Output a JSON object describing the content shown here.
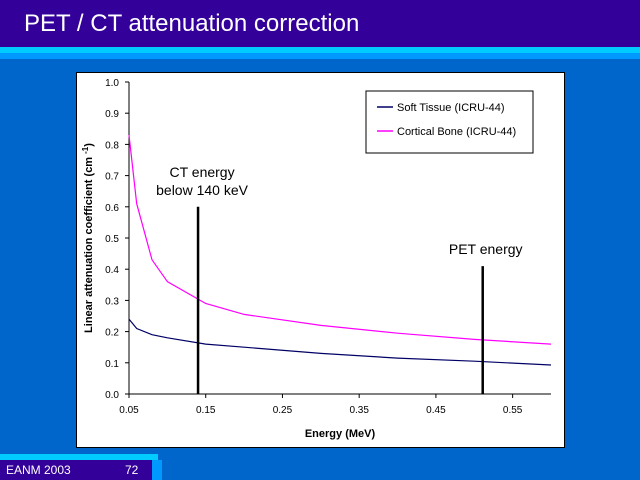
{
  "slide": {
    "title": "PET / CT attenuation correction",
    "footer_conference": "EANM 2003",
    "footer_page": "72"
  },
  "chart_data": {
    "type": "line",
    "title": "",
    "xlabel": "Energy (MeV)",
    "ylabel": "Linear attenuation coefficient (cm -1)",
    "ylabel_main": "Linear attenuation coefficient (cm",
    "ylabel_sup": "-1",
    "ylabel_close": ")",
    "xlim": [
      0.05,
      0.6
    ],
    "ylim": [
      0.0,
      1.0
    ],
    "xticks": [
      "0.05",
      "0.15",
      "0.25",
      "0.35",
      "0.45",
      "0.55"
    ],
    "xtick_values": [
      0.05,
      0.15,
      0.25,
      0.35,
      0.45,
      0.55
    ],
    "yticks": [
      "0.0",
      "0.1",
      "0.2",
      "0.3",
      "0.4",
      "0.5",
      "0.6",
      "0.7",
      "0.8",
      "0.9",
      "1.0"
    ],
    "ytick_values": [
      0.0,
      0.1,
      0.2,
      0.3,
      0.4,
      0.5,
      0.6,
      0.7,
      0.8,
      0.9,
      1.0
    ],
    "grid": false,
    "legend_position": "top-right",
    "series": [
      {
        "name": "Soft Tissue (ICRU-44)",
        "color": "#000066",
        "x": [
          0.05,
          0.06,
          0.08,
          0.1,
          0.15,
          0.2,
          0.3,
          0.4,
          0.5,
          0.6
        ],
        "y": [
          0.24,
          0.21,
          0.19,
          0.18,
          0.16,
          0.15,
          0.13,
          0.115,
          0.105,
          0.093
        ]
      },
      {
        "name": "Cortical Bone (ICRU-44)",
        "color": "#ff00ff",
        "x": [
          0.05,
          0.06,
          0.08,
          0.1,
          0.15,
          0.2,
          0.3,
          0.4,
          0.5,
          0.6
        ],
        "y": [
          0.83,
          0.61,
          0.43,
          0.36,
          0.29,
          0.255,
          0.22,
          0.195,
          0.175,
          0.16
        ]
      }
    ],
    "annotations": [
      {
        "label_lines": [
          "CT energy",
          "below 140 keV"
        ],
        "x": 0.14,
        "y_top": 0.6
      },
      {
        "label_lines": [
          "PET energy"
        ],
        "x": 0.511,
        "y_top": 0.41
      }
    ]
  }
}
